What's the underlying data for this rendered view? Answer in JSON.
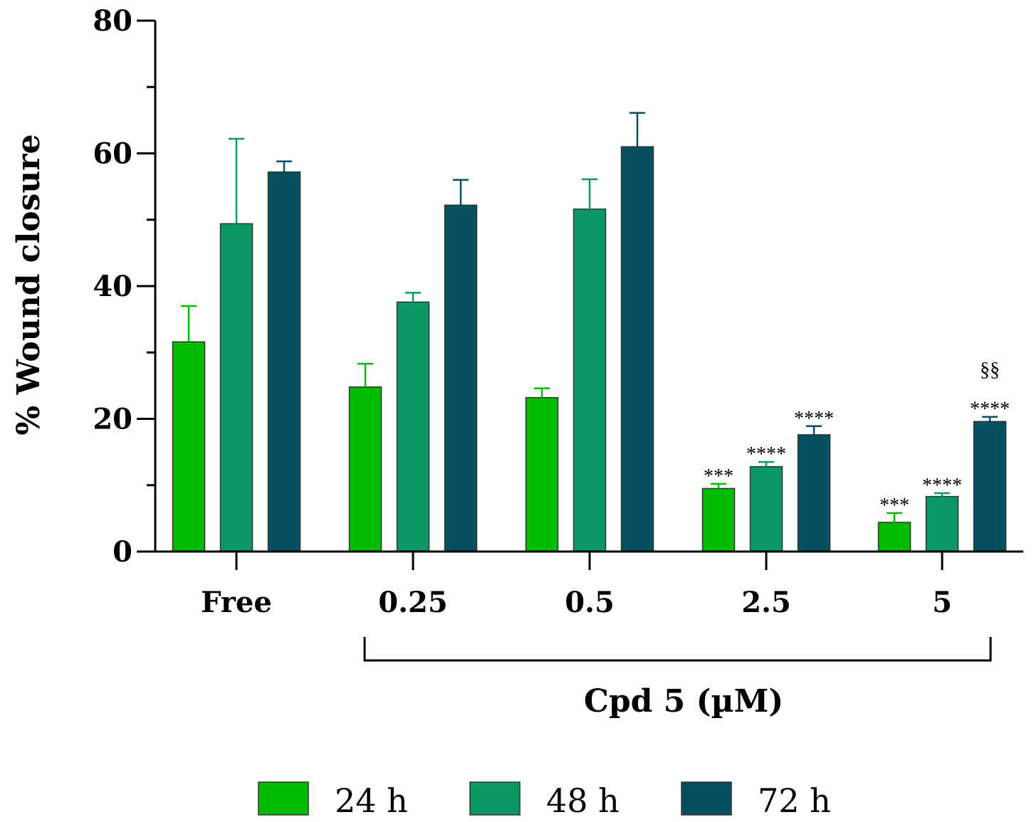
{
  "chart_data": {
    "type": "bar",
    "title": "",
    "ylabel": "% Wound closure",
    "xlabel": "Cpd 5 (µM)",
    "ylim": [
      0,
      80
    ],
    "yticks": [
      "0",
      "20",
      "40",
      "60",
      "80"
    ],
    "categories": [
      "Free",
      "0.25",
      "0.5",
      "2.5",
      "5"
    ],
    "bracket_categories": [
      "0.25",
      "2.5",
      "5"
    ],
    "series": [
      {
        "name": "24 h",
        "color": "#00bb00",
        "values": [
          31.6,
          24.8,
          23.2,
          9.5,
          4.4
        ],
        "errors": [
          5.4,
          3.5,
          1.4,
          0.7,
          1.4
        ],
        "annotations": [
          "",
          "",
          "",
          "***",
          "***"
        ]
      },
      {
        "name": "48 h",
        "color": "#0b9963",
        "values": [
          49.4,
          37.6,
          51.6,
          12.8,
          8.3
        ],
        "errors": [
          12.8,
          1.4,
          4.5,
          0.7,
          0.5
        ],
        "annotations": [
          "",
          "",
          "",
          "****",
          "****"
        ]
      },
      {
        "name": "72 h",
        "color": "#044f60",
        "values": [
          57.2,
          52.2,
          61.0,
          17.6,
          19.6
        ],
        "errors": [
          1.6,
          3.8,
          5.1,
          1.3,
          0.7
        ],
        "annotations": [
          "",
          "",
          "",
          "****",
          "****"
        ]
      }
    ],
    "extra_annotations": [
      {
        "category": "5",
        "series": "72 h",
        "text": "§§"
      }
    ],
    "legend": [
      "24 h",
      "48 h",
      "72 h"
    ],
    "legend_position": "bottom-center"
  }
}
